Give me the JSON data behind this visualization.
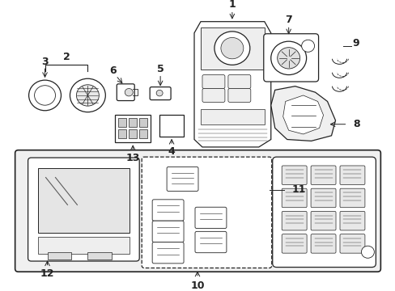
{
  "background_color": "#ffffff",
  "line_color": "#222222",
  "label_fontsize": 9,
  "fig_w": 4.89,
  "fig_h": 3.6,
  "dpi": 100
}
